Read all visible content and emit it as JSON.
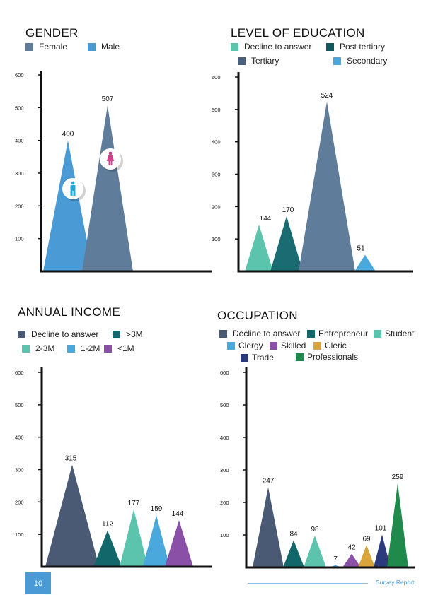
{
  "footer": {
    "page_number": "10",
    "report_title": "Survey Report"
  },
  "chart_data": [
    {
      "type": "area",
      "title": "GENDER",
      "ylim": [
        0,
        600
      ],
      "yticks": [
        "100",
        "200",
        "300",
        "400",
        "500",
        "600"
      ],
      "series": [
        {
          "name": "Female",
          "value": 507,
          "label": "507",
          "color": "#5f7d9b",
          "icon": "female-person-icon"
        },
        {
          "name": "Male",
          "value": 400,
          "label": "400",
          "color": "#4a9bd5",
          "icon": "male-person-icon"
        }
      ],
      "legend": [
        {
          "name": "Female",
          "color": "#5f7d9b"
        },
        {
          "name": "Male",
          "color": "#4a9bd5"
        }
      ]
    },
    {
      "type": "area",
      "title": "LEVEL OF EDUCATION",
      "ylim": [
        0,
        600
      ],
      "yticks": [
        "100",
        "200",
        "300",
        "400",
        "500",
        "600"
      ],
      "series": [
        {
          "name": "Decline to answer",
          "value": 144,
          "label": "144",
          "color": "#5cc4ad"
        },
        {
          "name": "Post tertiary",
          "value": 170,
          "label": "170",
          "color": "#1a6b72"
        },
        {
          "name": "Tertiary",
          "value": 524,
          "label": "524",
          "color": "#5f7d9b"
        },
        {
          "name": "Secondary",
          "value": 51,
          "label": "51",
          "color": "#4aa8dd"
        }
      ],
      "legend": [
        {
          "name": "Decline to answer",
          "color": "#5cc4ad"
        },
        {
          "name": "Post tertiary",
          "color": "#0e5a5f"
        },
        {
          "name": "Tertiary",
          "color": "#4a5f7c"
        },
        {
          "name": "Secondary",
          "color": "#4aa8dd"
        }
      ]
    },
    {
      "type": "area",
      "title": "ANNUAL INCOME",
      "ylim": [
        0,
        600
      ],
      "yticks": [
        "100",
        "200",
        "300",
        "400",
        "500",
        "600"
      ],
      "series": [
        {
          "name": "Decline to answer",
          "value": 315,
          "label": "315",
          "color": "#4a5a74"
        },
        {
          "name": ">3M",
          "value": 112,
          "label": "112",
          "color": "#12676a"
        },
        {
          "name": "2-3M",
          "value": 177,
          "label": "177",
          "color": "#5cc4ad"
        },
        {
          "name": "1-2M",
          "value": 159,
          "label": "159",
          "color": "#4aa8dd"
        },
        {
          "name": "<1M",
          "value": 144,
          "label": "144",
          "color": "#8a4fa6"
        }
      ],
      "legend": [
        {
          "name": "Decline to answer",
          "color": "#4a5a74"
        },
        {
          "name": ">3M",
          "color": "#12676a"
        },
        {
          "name": "2-3M",
          "color": "#5cc4ad"
        },
        {
          "name": "1-2M",
          "color": "#4aa8dd"
        },
        {
          "name": "<1M",
          "color": "#8a4fa6"
        }
      ]
    },
    {
      "type": "area",
      "title": "OCCUPATION",
      "ylim": [
        0,
        600
      ],
      "yticks": [
        "100",
        "200",
        "300",
        "400",
        "500",
        "600"
      ],
      "series": [
        {
          "name": "Decline to answer",
          "value": 247,
          "label": "247",
          "color": "#4a5a74"
        },
        {
          "name": "Entrepreneur",
          "value": 84,
          "label": "84",
          "color": "#12676a"
        },
        {
          "name": "Student",
          "value": 98,
          "label": "98",
          "color": "#5cc4ad"
        },
        {
          "name": "Clergy",
          "value": 7,
          "label": "7",
          "color": "#4aa8dd"
        },
        {
          "name": "Skilled",
          "value": 42,
          "label": "42",
          "color": "#8a4fa6"
        },
        {
          "name": "Cleric",
          "value": 69,
          "label": "69",
          "color": "#d9a53b"
        },
        {
          "name": "Trade",
          "value": 101,
          "label": "101",
          "color": "#2a3a7c"
        },
        {
          "name": "Professionals",
          "value": 259,
          "label": "259",
          "color": "#1f8a4c"
        }
      ],
      "legend": [
        {
          "name": "Decline to answer",
          "color": "#4a5a74"
        },
        {
          "name": "Entrepreneur",
          "color": "#12676a"
        },
        {
          "name": "Student",
          "color": "#5cc4ad"
        },
        {
          "name": "Clergy",
          "color": "#4aa8dd"
        },
        {
          "name": "Skilled",
          "color": "#8a4fa6"
        },
        {
          "name": "Cleric",
          "color": "#d9a53b"
        },
        {
          "name": "Trade",
          "color": "#2a3a7c"
        },
        {
          "name": "Professionals",
          "color": "#1f8a4c"
        }
      ]
    }
  ]
}
